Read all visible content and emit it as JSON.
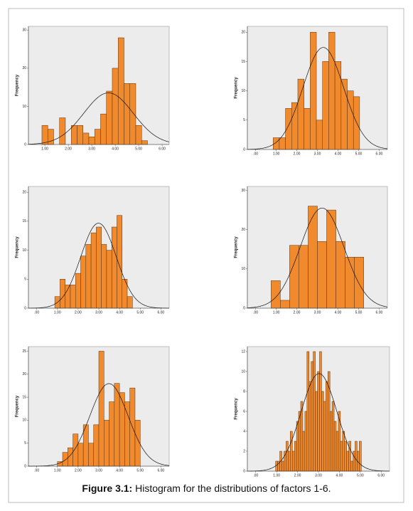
{
  "chart_data": [
    {
      "type": "histogram",
      "y_label": "Frequency",
      "color": "#f08a2c",
      "bins": [
        0.875,
        1.125,
        1.375,
        1.625,
        1.875,
        2.125,
        2.375,
        2.625,
        2.875,
        3.125,
        3.375,
        3.625,
        3.875,
        4.125,
        4.375,
        4.625,
        4.875,
        5.125,
        5.375
      ],
      "values": [
        5,
        4,
        0,
        7,
        0,
        5,
        5,
        3,
        2,
        4,
        8,
        14,
        20,
        28,
        16,
        16,
        5,
        1
      ],
      "xlim": [
        0.3,
        6.3
      ],
      "xticks": [
        {
          "value": 1,
          "label": "1.00"
        },
        {
          "value": 2,
          "label": "2.00"
        },
        {
          "value": 3,
          "label": "3.00"
        },
        {
          "value": 4,
          "label": "4.00"
        },
        {
          "value": 5,
          "label": "5.00"
        },
        {
          "value": 6,
          "label": "6.00"
        }
      ],
      "ylim": [
        0,
        31
      ],
      "yticks": [
        0,
        10,
        20,
        30
      ]
    },
    {
      "type": "histogram",
      "y_label": "Frequency",
      "color": "#f08a2c",
      "bins": [
        0.85,
        1.15,
        1.45,
        1.75,
        2.05,
        2.35,
        2.65,
        2.95,
        3.25,
        3.55,
        3.85,
        4.15,
        4.45,
        4.75,
        5.05
      ],
      "values": [
        2,
        2,
        7,
        8,
        12,
        7,
        20,
        5,
        15,
        20,
        15,
        12,
        10,
        9
      ],
      "xlim": [
        -0.4,
        6.4
      ],
      "xticks": [
        {
          "value": 0,
          "label": ".00"
        },
        {
          "value": 1,
          "label": "1.00"
        },
        {
          "value": 2,
          "label": "2.00"
        },
        {
          "value": 3,
          "label": "3.00"
        },
        {
          "value": 4,
          "label": "4.00"
        },
        {
          "value": 5,
          "label": "5.00"
        },
        {
          "value": 6,
          "label": "6.00"
        }
      ],
      "ylim": [
        0,
        21
      ],
      "yticks": [
        0,
        5,
        10,
        15,
        20
      ]
    },
    {
      "type": "histogram",
      "y_label": "Frequency",
      "color": "#f08a2c",
      "bins": [
        0.875,
        1.125,
        1.375,
        1.625,
        1.875,
        2.125,
        2.375,
        2.625,
        2.875,
        3.125,
        3.375,
        3.625,
        3.875,
        4.125,
        4.375,
        4.625,
        4.875
      ],
      "values": [
        2,
        5,
        4,
        4,
        6,
        9,
        11,
        13,
        14,
        11,
        10,
        14,
        16,
        5,
        2,
        0
      ],
      "xlim": [
        -0.4,
        6.4
      ],
      "xticks": [
        {
          "value": 0,
          "label": ".00"
        },
        {
          "value": 1,
          "label": "1.00"
        },
        {
          "value": 2,
          "label": "2.00"
        },
        {
          "value": 3,
          "label": "3.00"
        },
        {
          "value": 4,
          "label": "4.00"
        },
        {
          "value": 5,
          "label": "5.00"
        },
        {
          "value": 6,
          "label": "6.00"
        }
      ],
      "ylim": [
        0,
        21
      ],
      "yticks": [
        0,
        5,
        10,
        15,
        20
      ]
    },
    {
      "type": "histogram",
      "y_label": "Frequency",
      "color": "#f08a2c",
      "bins": [
        0.75,
        1.2,
        1.65,
        2.1,
        2.55,
        3.0,
        3.45,
        3.9,
        4.35,
        4.8,
        5.25
      ],
      "values": [
        7,
        2,
        16,
        16,
        26,
        17,
        25,
        17,
        13,
        13
      ],
      "xlim": [
        -0.4,
        6.4
      ],
      "xticks": [
        {
          "value": 0,
          "label": ".00"
        },
        {
          "value": 1,
          "label": "1.00"
        },
        {
          "value": 2,
          "label": "2.00"
        },
        {
          "value": 3,
          "label": "3.00"
        },
        {
          "value": 4,
          "label": "4.00"
        },
        {
          "value": 5,
          "label": "5.00"
        },
        {
          "value": 6,
          "label": "6.00"
        }
      ],
      "ylim": [
        0,
        31
      ],
      "yticks": [
        0,
        10,
        20,
        30
      ]
    },
    {
      "type": "histogram",
      "y_label": "Frequency",
      "color": "#f08a2c",
      "bins": [
        1.0,
        1.25,
        1.5,
        1.75,
        2.0,
        2.25,
        2.5,
        2.75,
        3.0,
        3.25,
        3.5,
        3.75,
        4.0,
        4.25,
        4.5,
        4.75,
        5.0
      ],
      "values": [
        1,
        3,
        4,
        7,
        5,
        9,
        5,
        9,
        25,
        10,
        14,
        18,
        16,
        14,
        17,
        10
      ],
      "xlim": [
        -0.4,
        6.4
      ],
      "xticks": [
        {
          "value": 0,
          "label": ".00"
        },
        {
          "value": 1,
          "label": "1.00"
        },
        {
          "value": 2,
          "label": "2.00"
        },
        {
          "value": 3,
          "label": "3.00"
        },
        {
          "value": 4,
          "label": "4.00"
        },
        {
          "value": 5,
          "label": "5.00"
        },
        {
          "value": 6,
          "label": "6.00"
        }
      ],
      "ylim": [
        0,
        26
      ],
      "yticks": [
        0,
        5,
        10,
        15,
        20,
        25
      ]
    },
    {
      "type": "histogram",
      "y_label": "Frequency",
      "color": "#f08a2c",
      "bins": [
        0.95,
        1.05,
        1.15,
        1.25,
        1.35,
        1.45,
        1.55,
        1.65,
        1.75,
        1.85,
        1.95,
        2.05,
        2.15,
        2.25,
        2.35,
        2.45,
        2.55,
        2.65,
        2.75,
        2.85,
        2.95,
        3.05,
        3.15,
        3.25,
        3.35,
        3.45,
        3.55,
        3.65,
        3.75,
        3.85,
        3.95,
        4.05,
        4.15,
        4.25,
        4.35,
        4.45,
        4.55,
        4.65,
        4.75,
        4.85,
        4.95,
        5.05
      ],
      "values": [
        1,
        1,
        2,
        1,
        2,
        3,
        2,
        4,
        2,
        3,
        5,
        6,
        7,
        4,
        6,
        12,
        9,
        11,
        12,
        8,
        10,
        12,
        8,
        7,
        9,
        10,
        6,
        7,
        5,
        4,
        6,
        3,
        4,
        3,
        2,
        3,
        1,
        2,
        3,
        2,
        3
      ],
      "xlim": [
        -0.4,
        6.4
      ],
      "xticks": [
        {
          "value": 0,
          "label": ".00"
        },
        {
          "value": 1,
          "label": "1.00"
        },
        {
          "value": 2,
          "label": "2.00"
        },
        {
          "value": 3,
          "label": "3.00"
        },
        {
          "value": 4,
          "label": "4.00"
        },
        {
          "value": 5,
          "label": "5.00"
        },
        {
          "value": 6,
          "label": "6.00"
        }
      ],
      "ylim": [
        0,
        12.5
      ],
      "yticks": [
        0,
        2,
        4,
        6,
        8,
        10,
        12
      ]
    }
  ],
  "caption": {
    "label": "Figure 3.1:",
    "text": "Histogram for the distributions of factors 1-6."
  }
}
